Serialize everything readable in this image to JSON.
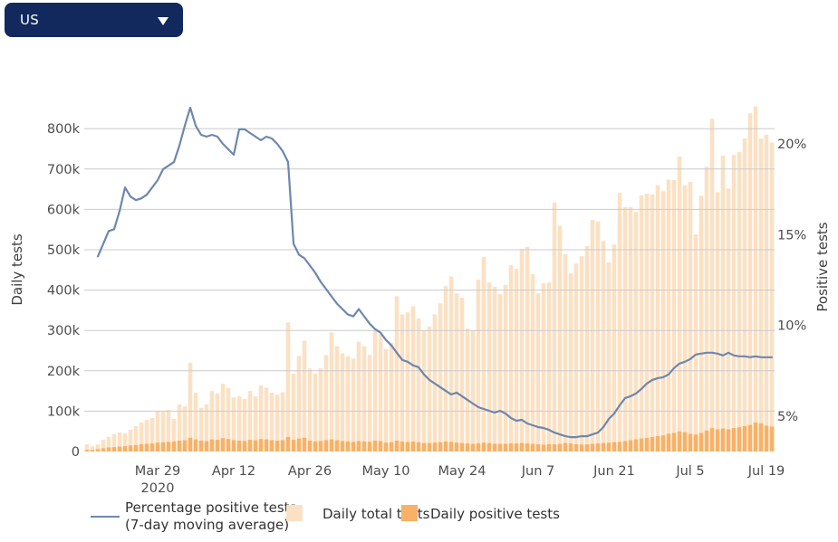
{
  "region_selector": {
    "value": "US",
    "icon": "caret-down-icon"
  },
  "legend": {
    "items": [
      {
        "label": "Percentage positive tests",
        "label2": "(7-day moving average)",
        "swatch": "line"
      },
      {
        "label": "Daily total tests",
        "swatch": "bar-light"
      },
      {
        "label": "Daily positive tests",
        "swatch": "bar-dark"
      }
    ]
  },
  "chart_data": {
    "type": "bar+line combo, dual axis",
    "title": "",
    "left_axis": {
      "label": "Daily tests",
      "tick_labels": [
        "0",
        "100k",
        "200k",
        "300k",
        "400k",
        "500k",
        "600k",
        "700k",
        "800k"
      ],
      "range": [
        0,
        896000
      ]
    },
    "right_axis": {
      "label": "Positive tests",
      "tick_labels": [
        "5%",
        "10%",
        "15%",
        "20%"
      ],
      "range_hint": "5% to 20% labeled; line min ~3.9%, max ~22%"
    },
    "x_axis": {
      "start_date": "Mar 16 2020",
      "end_date": "Jul 20 2020",
      "tick_labels": [
        {
          "i": 13,
          "label": "Mar 29",
          "sub": "2020"
        },
        {
          "i": 27,
          "label": "Apr 12"
        },
        {
          "i": 41,
          "label": "Apr 26"
        },
        {
          "i": 55,
          "label": "May 10"
        },
        {
          "i": 69,
          "label": "May 24"
        },
        {
          "i": 83,
          "label": "Jun 7"
        },
        {
          "i": 97,
          "label": "Jun 21"
        },
        {
          "i": 111,
          "label": "Jul 5"
        },
        {
          "i": 125,
          "label": "Jul 19"
        }
      ]
    },
    "grid": "horizontal lines at each 100k",
    "legend_position": "bottom-left",
    "series": [
      {
        "name": "Daily total tests",
        "type": "bar",
        "axis": "left",
        "unit": "thousands",
        "values": [
          18,
          13,
          18,
          29,
          36,
          43,
          47,
          45,
          54,
          63,
          72,
          78,
          83,
          101,
          101,
          103,
          81,
          117,
          112,
          220,
          146,
          108,
          117,
          150,
          144,
          168,
          157,
          134,
          137,
          130,
          150,
          137,
          164,
          158,
          146,
          141,
          147,
          320,
          193,
          237,
          275,
          206,
          193,
          206,
          239,
          295,
          261,
          243,
          236,
          230,
          272,
          261,
          240,
          300,
          290,
          254,
          270,
          385,
          340,
          345,
          360,
          330,
          300,
          310,
          340,
          367,
          410,
          434,
          392,
          381,
          305,
          300,
          426,
          482,
          419,
          408,
          390,
          413,
          462,
          453,
          502,
          507,
          440,
          392,
          417,
          419,
          617,
          560,
          489,
          442,
          466,
          484,
          509,
          574,
          570,
          522,
          469,
          513,
          641,
          606,
          606,
          594,
          635,
          639,
          637,
          660,
          645,
          674,
          673,
          731,
          659,
          668,
          538,
          634,
          706,
          825,
          643,
          733,
          652,
          735,
          742,
          776,
          838,
          855,
          776,
          785,
          766
        ]
      },
      {
        "name": "Daily positive tests",
        "type": "bar",
        "axis": "left",
        "unit": "thousands",
        "values": [
          4,
          4,
          6,
          8,
          10,
          11,
          12,
          13,
          15,
          16,
          18,
          19,
          20,
          22,
          23,
          24,
          25,
          27,
          28,
          34,
          30,
          27,
          26,
          30,
          29,
          33,
          31,
          28,
          27,
          26,
          29,
          28,
          31,
          30,
          28,
          27,
          28,
          36,
          29,
          32,
          34,
          27,
          25,
          26,
          28,
          30,
          28,
          26,
          25,
          24,
          26,
          25,
          24,
          27,
          26,
          22,
          23,
          27,
          25,
          24,
          25,
          23,
          21,
          21,
          22,
          23,
          25,
          24,
          22,
          21,
          20,
          19,
          20,
          22,
          21,
          19,
          19,
          19,
          20,
          20,
          21,
          20,
          19,
          18,
          17,
          18,
          18,
          19,
          21,
          20,
          18,
          17,
          18,
          19,
          20,
          21,
          22,
          23,
          24,
          26,
          28,
          30,
          32,
          34,
          36,
          38,
          40,
          44,
          46,
          50,
          48,
          44,
          42,
          46,
          52,
          58,
          55,
          57,
          55,
          58,
          60,
          63,
          66,
          72,
          70,
          64,
          62
        ]
      },
      {
        "name": "Percentage positive tests (7-day moving average)",
        "type": "line",
        "axis": "right",
        "unit": "%",
        "values": [
          null,
          null,
          13.8,
          14.5,
          15.2,
          15.3,
          16.3,
          17.6,
          17.1,
          16.9,
          17.0,
          17.2,
          17.6,
          18.0,
          18.6,
          18.8,
          19.0,
          19.9,
          21.0,
          22.0,
          21.0,
          20.5,
          20.4,
          20.5,
          20.4,
          20.0,
          19.7,
          19.4,
          20.8,
          20.8,
          20.6,
          20.4,
          20.2,
          20.4,
          20.3,
          20.0,
          19.6,
          19.0,
          14.5,
          13.9,
          13.7,
          13.3,
          12.9,
          12.4,
          12.0,
          11.6,
          11.2,
          10.9,
          10.6,
          10.5,
          10.9,
          10.5,
          10.1,
          9.8,
          9.6,
          9.2,
          8.9,
          8.5,
          8.1,
          8.0,
          7.8,
          7.7,
          7.3,
          7.0,
          6.8,
          6.6,
          6.4,
          6.2,
          6.3,
          6.1,
          5.9,
          5.7,
          5.5,
          5.4,
          5.3,
          5.2,
          5.3,
          5.15,
          4.9,
          4.75,
          4.8,
          4.6,
          4.5,
          4.4,
          4.35,
          4.25,
          4.1,
          4.0,
          3.9,
          3.85,
          3.85,
          3.9,
          3.9,
          4.0,
          4.1,
          4.4,
          4.85,
          5.15,
          5.6,
          6.0,
          6.1,
          6.25,
          6.5,
          6.8,
          7.0,
          7.1,
          7.15,
          7.3,
          7.65,
          7.9,
          8.0,
          8.15,
          8.4,
          8.45,
          8.5,
          8.5,
          8.45,
          8.35,
          8.5,
          8.35,
          8.3,
          8.3,
          8.25,
          8.3,
          8.25,
          8.25,
          8.25
        ]
      }
    ],
    "colors": {
      "total_bar": "#fbe1c4",
      "positive_bar": "#f8b166",
      "line": "#6e87ae",
      "grid": "#cbcbcb",
      "axis_text": "#4d4d4d",
      "axis_title": "#3d3d3d",
      "dropdown_bg": "#12295e"
    }
  }
}
